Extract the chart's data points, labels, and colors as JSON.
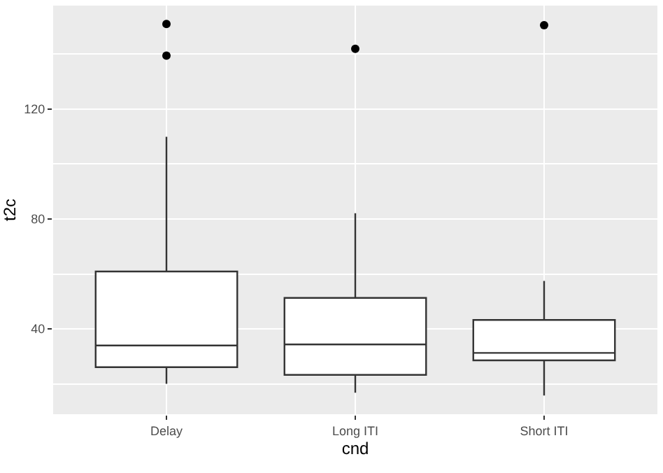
{
  "chart_data": {
    "type": "box",
    "xlabel": "cnd",
    "ylabel": "t2c",
    "categories": [
      "Delay",
      "Long ITI",
      "Short ITI"
    ],
    "boxes": [
      {
        "low": 20.1,
        "q1": 26.1,
        "median": 34,
        "q3": 60.9,
        "high": 109.9,
        "outliers": [
          150.9,
          139.4
        ]
      },
      {
        "low": 16.8,
        "q1": 23.3,
        "median": 34.4,
        "q3": 51.3,
        "high": 82.1,
        "outliers": [
          141.9
        ]
      },
      {
        "low": 15.8,
        "q1": 28.6,
        "median": 31.3,
        "q3": 43.3,
        "high": 57.5,
        "outliers": [
          150.5
        ]
      }
    ],
    "color": "#ffffff",
    "ylim": [
      9,
      157.6
    ],
    "yticks": [
      40,
      80,
      120
    ],
    "grid": true
  }
}
